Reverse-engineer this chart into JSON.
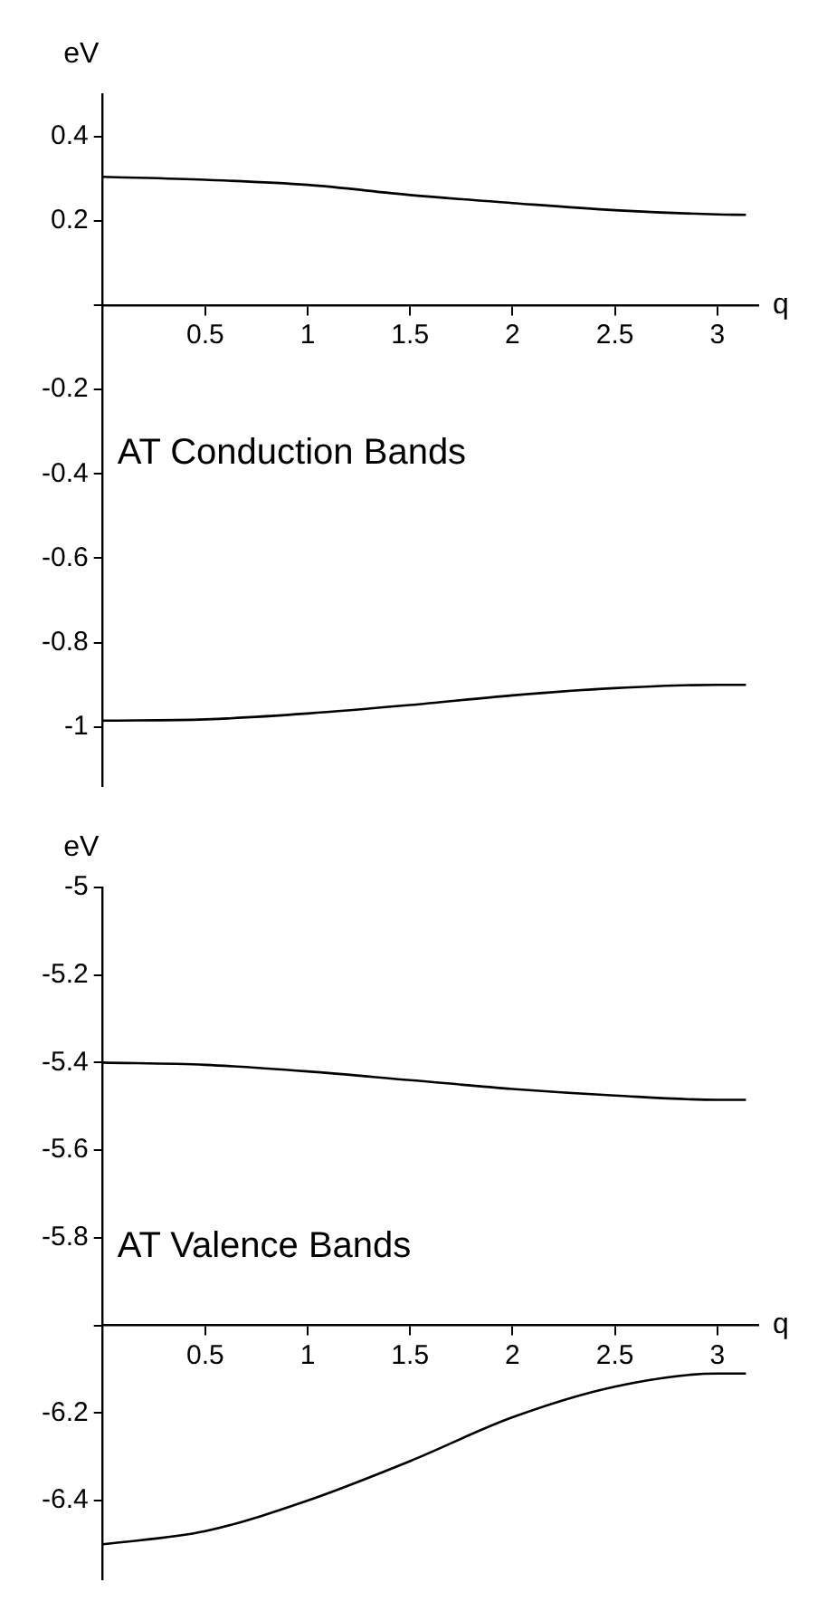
{
  "chart_data": [
    {
      "type": "line",
      "xlabel": "q",
      "ylabel": "eV",
      "annotations": [
        "AT Conduction Bands"
      ],
      "x": [
        0,
        0.5,
        1,
        1.5,
        2,
        2.5,
        3,
        3.14
      ],
      "series": [
        {
          "color": "#000000",
          "values": [
            0.304,
            0.297,
            0.285,
            0.261,
            0.242,
            0.225,
            0.215,
            0.214
          ]
        },
        {
          "color": "#000000",
          "values": [
            -0.985,
            -0.982,
            -0.968,
            -0.948,
            -0.925,
            -0.908,
            -0.9,
            -0.9
          ]
        }
      ],
      "xlim": [
        0,
        3.2
      ],
      "xticks": [
        0.5,
        1,
        1.5,
        2,
        2.5,
        3
      ],
      "ylim": [
        -1.14,
        0.5
      ],
      "yticks": [
        -1,
        -0.8,
        -0.6,
        -0.4,
        -0.2,
        {
          "value": 0,
          "label": null
        },
        0.2,
        0.4
      ],
      "grid": false,
      "legend": false,
      "marker": "none",
      "line_style": "solid"
    },
    {
      "type": "line",
      "xlabel": "q",
      "ylabel": "eV",
      "annotations": [
        "AT Valence Bands"
      ],
      "x": [
        0,
        0.5,
        1,
        1.5,
        2,
        2.5,
        3,
        3.14
      ],
      "series": [
        {
          "color": "#000000",
          "values": [
            -5.4,
            -5.405,
            -5.42,
            -5.44,
            -5.46,
            -5.475,
            -5.485,
            -5.485
          ]
        },
        {
          "color": "#000000",
          "values": [
            -6.5,
            -6.47,
            -6.4,
            -6.31,
            -6.21,
            -6.14,
            -6.11,
            -6.11
          ]
        }
      ],
      "xlim": [
        0,
        3.2
      ],
      "xticks": [
        0.5,
        1,
        1.5,
        2,
        2.5,
        3
      ],
      "ylim": [
        -6.58,
        -5
      ],
      "yticks": [
        -6.4,
        -6.2,
        {
          "value": -6,
          "label": null
        },
        -5.8,
        -5.6,
        -5.4,
        -5.2,
        -5
      ],
      "grid": false,
      "legend": false,
      "marker": "none",
      "line_style": "solid"
    }
  ]
}
